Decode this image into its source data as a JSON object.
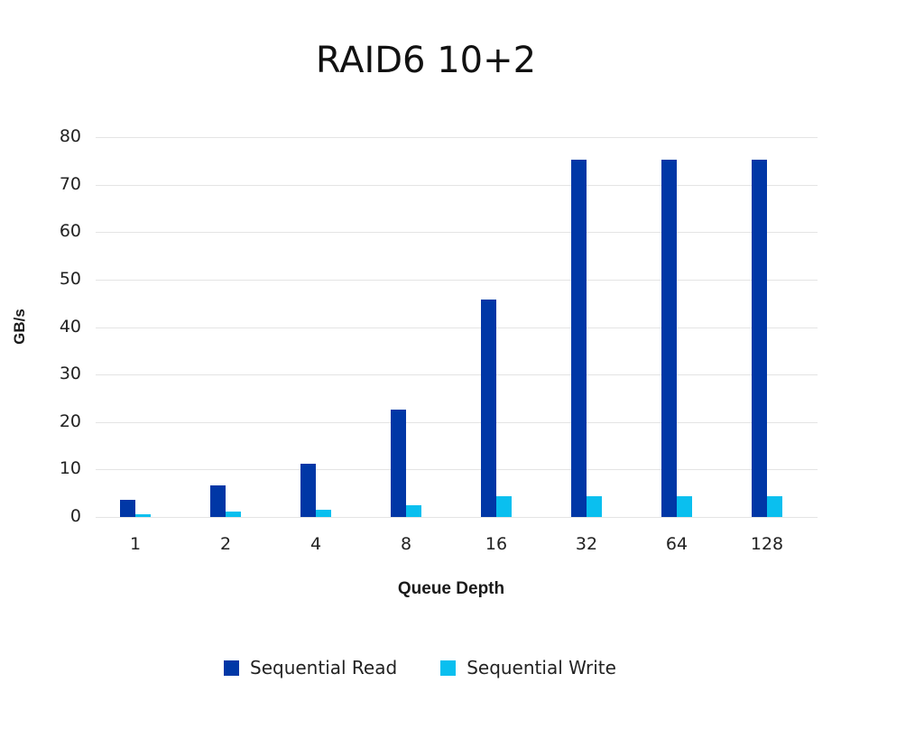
{
  "chart_data": {
    "type": "bar",
    "title": "RAID6 10+2",
    "xlabel": "Queue Depth",
    "ylabel": "GB/s",
    "ylim": [
      0,
      80
    ],
    "yticks": [
      0,
      10,
      20,
      30,
      40,
      50,
      60,
      70,
      80
    ],
    "grid": true,
    "legend_position": "bottom",
    "categories": [
      "1",
      "2",
      "4",
      "8",
      "16",
      "32",
      "64",
      "128"
    ],
    "series": [
      {
        "name": "Sequential Read",
        "color": "#0037a6",
        "values": [
          3.6,
          6.6,
          11.2,
          22.6,
          45.8,
          75.3,
          75.3,
          75.3
        ]
      },
      {
        "name": "Sequential Write",
        "color": "#0abfef",
        "values": [
          0.5,
          1.1,
          1.5,
          2.4,
          4.3,
          4.3,
          4.3,
          4.3
        ]
      }
    ]
  },
  "legend": {
    "read_label": "Sequential Read",
    "write_label": "Sequential Write"
  }
}
